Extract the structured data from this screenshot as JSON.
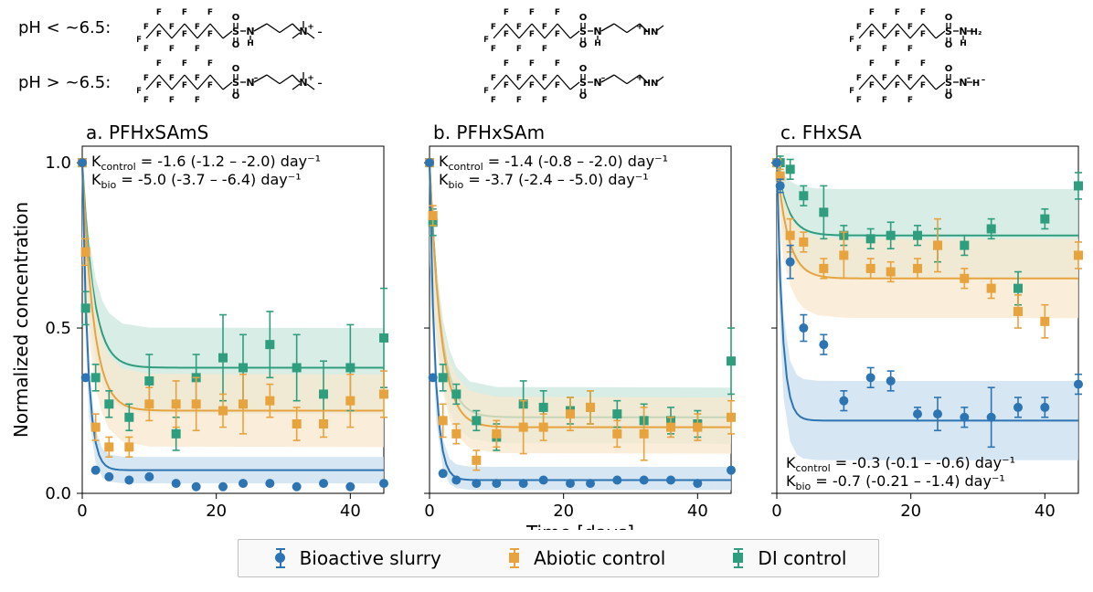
{
  "ph_labels": {
    "low": "pH < ~6.5:",
    "high": "pH > ~6.5:"
  },
  "molecule_struct_text": {
    "a_top": "F F F F F F  O\\/\\/\\/\\/S-N-/\\ N⁺-\nF F F F F F  O  H",
    "a_bot": "F F F F F F  O\\/\\/\\/\\/S-N⁻ /\\ N⁺-\nF F F F F F  O",
    "b_top": "F F F F F F  O\\/\\/\\/\\/S-N-/\\ ⁺HN\nF F F F F F  O  H",
    "b_bot": "F F F F F F  O\\/\\/\\/\\/S-N⁻ /\\ ⁺HN\nF F F F F F  O",
    "c_top": "F F F F F F  O\\/\\/\\/\\/S-NH₂\nF F F F F F  O",
    "c_bot": "F F F F F F  O\\/\\/\\/\\/S-NH⁻\nF F F F F F  O"
  },
  "axes": {
    "ylabel": "Normalized concentration",
    "xlabel": "Time [days]",
    "xlim": [
      0,
      45
    ],
    "ylim": [
      0.0,
      1.05
    ],
    "xticks": [
      0,
      20,
      40
    ],
    "yticks": [
      0.0,
      0.5,
      1.0
    ]
  },
  "colors": {
    "bio": "#2d74b3",
    "abiotic": "#e7a33d",
    "di": "#2f9e7e",
    "bio_fill": "#c8deee",
    "abiotic_fill": "#f8e7cc",
    "di_fill": "#cbe7dc",
    "frame": "#000000"
  },
  "legend": [
    {
      "label": "Bioactive slurry",
      "color": "bio",
      "marker": "circle"
    },
    {
      "label": "Abiotic control",
      "color": "abiotic",
      "marker": "square"
    },
    {
      "label": "DI control",
      "color": "di",
      "marker": "square"
    }
  ],
  "panels": [
    {
      "key": "a",
      "title": "a. PFHxSAmS",
      "k_control": "Kcontrol = -1.6 (-1.2 – -2.0) day⁻¹",
      "k_bio": "Kbio = -5.0 (-3.7 – -6.4) day⁻¹",
      "ktext_pos": "top",
      "series": {
        "bio": {
          "plateau": 0.07,
          "band": [
            0.03,
            0.11
          ]
        },
        "abiotic": {
          "plateau": 0.25,
          "band": [
            0.14,
            0.36
          ]
        },
        "di": {
          "plateau": 0.38,
          "band": [
            0.24,
            0.5
          ]
        }
      },
      "points": {
        "bio": [
          [
            0,
            1.0,
            0
          ],
          [
            0.5,
            0.35,
            0
          ],
          [
            2,
            0.07,
            0
          ],
          [
            4,
            0.05,
            0
          ],
          [
            7,
            0.04,
            0
          ],
          [
            10,
            0.05,
            0
          ],
          [
            14,
            0.03,
            0
          ],
          [
            17,
            0.02,
            0
          ],
          [
            21,
            0.02,
            0
          ],
          [
            24,
            0.03,
            0
          ],
          [
            28,
            0.03,
            0
          ],
          [
            32,
            0.02,
            0
          ],
          [
            36,
            0.03,
            0
          ],
          [
            40,
            0.02,
            0
          ],
          [
            45,
            0.03,
            0
          ]
        ],
        "abiotic": [
          [
            0,
            1.0,
            0
          ],
          [
            0.5,
            0.73,
            0.04
          ],
          [
            2,
            0.2,
            0.04
          ],
          [
            4,
            0.14,
            0.03
          ],
          [
            7,
            0.14,
            0.03
          ],
          [
            10,
            0.27,
            0.05
          ],
          [
            14,
            0.27,
            0.07
          ],
          [
            17,
            0.27,
            0.08
          ],
          [
            21,
            0.25,
            0.05
          ],
          [
            24,
            0.27,
            0.09
          ],
          [
            28,
            0.28,
            0.05
          ],
          [
            32,
            0.21,
            0.05
          ],
          [
            36,
            0.21,
            0.04
          ],
          [
            40,
            0.28,
            0.08
          ],
          [
            45,
            0.3,
            0.07
          ]
        ],
        "di": [
          [
            0,
            1.0,
            0
          ],
          [
            0.5,
            0.56,
            0.05
          ],
          [
            2,
            0.35,
            0.04
          ],
          [
            4,
            0.27,
            0.04
          ],
          [
            7,
            0.23,
            0.04
          ],
          [
            10,
            0.34,
            0.08
          ],
          [
            14,
            0.18,
            0.05
          ],
          [
            17,
            0.35,
            0.07
          ],
          [
            21,
            0.41,
            0.13
          ],
          [
            24,
            0.38,
            0.1
          ],
          [
            28,
            0.45,
            0.1
          ],
          [
            32,
            0.38,
            0.1
          ],
          [
            36,
            0.3,
            0.1
          ],
          [
            40,
            0.38,
            0.13
          ],
          [
            45,
            0.47,
            0.15
          ]
        ]
      }
    },
    {
      "key": "b",
      "title": "b. PFHxSAm",
      "k_control": "Kcontrol = -1.4 (-0.8 – -2.0) day⁻¹",
      "k_bio": "Kbio = -3.7 (-2.4 – -5.0) day⁻¹",
      "ktext_pos": "top",
      "series": {
        "bio": {
          "plateau": 0.04,
          "band": [
            0.01,
            0.08
          ]
        },
        "abiotic": {
          "plateau": 0.2,
          "band": [
            0.12,
            0.29
          ]
        },
        "di": {
          "plateau": 0.23,
          "band": [
            0.15,
            0.32
          ]
        }
      },
      "points": {
        "bio": [
          [
            0,
            1.0,
            0
          ],
          [
            0.5,
            0.35,
            0
          ],
          [
            2,
            0.06,
            0
          ],
          [
            4,
            0.04,
            0
          ],
          [
            7,
            0.03,
            0
          ],
          [
            10,
            0.03,
            0
          ],
          [
            14,
            0.03,
            0
          ],
          [
            17,
            0.04,
            0
          ],
          [
            21,
            0.03,
            0
          ],
          [
            24,
            0.03,
            0
          ],
          [
            28,
            0.04,
            0
          ],
          [
            32,
            0.04,
            0
          ],
          [
            36,
            0.04,
            0
          ],
          [
            40,
            0.03,
            0
          ],
          [
            45,
            0.07,
            0
          ]
        ],
        "abiotic": [
          [
            0,
            1.0,
            0
          ],
          [
            0.5,
            0.84,
            0.03
          ],
          [
            2,
            0.22,
            0.05
          ],
          [
            4,
            0.18,
            0.03
          ],
          [
            7,
            0.1,
            0.03
          ],
          [
            10,
            0.18,
            0.04
          ],
          [
            14,
            0.2,
            0.08
          ],
          [
            17,
            0.2,
            0.04
          ],
          [
            21,
            0.24,
            0.05
          ],
          [
            24,
            0.26,
            0.05
          ],
          [
            28,
            0.18,
            0.04
          ],
          [
            32,
            0.18,
            0.08
          ],
          [
            36,
            0.2,
            0.03
          ],
          [
            40,
            0.2,
            0.04
          ],
          [
            45,
            0.23,
            0.05
          ]
        ],
        "di": [
          [
            0,
            1.0,
            0
          ],
          [
            0.5,
            0.82,
            0.04
          ],
          [
            2,
            0.35,
            0.04
          ],
          [
            4,
            0.3,
            0.03
          ],
          [
            7,
            0.22,
            0.03
          ],
          [
            10,
            0.17,
            0.04
          ],
          [
            14,
            0.27,
            0.07
          ],
          [
            17,
            0.26,
            0.05
          ],
          [
            21,
            0.25,
            0.04
          ],
          [
            24,
            0.26,
            0.05
          ],
          [
            28,
            0.24,
            0.04
          ],
          [
            32,
            0.22,
            0.05
          ],
          [
            36,
            0.22,
            0.04
          ],
          [
            40,
            0.21,
            0.04
          ],
          [
            45,
            0.4,
            0.1
          ]
        ]
      }
    },
    {
      "key": "c",
      "title": "c. FHxSA",
      "k_control": "Kcontrol = -0.3 (-0.1 – -0.6) day⁻¹",
      "k_bio": "Kbio = -0.7 (-0.21 – -1.4) day⁻¹",
      "ktext_pos": "bottom",
      "series": {
        "bio": {
          "plateau": 0.22,
          "band": [
            0.1,
            0.34
          ]
        },
        "abiotic": {
          "plateau": 0.65,
          "band": [
            0.53,
            0.77
          ]
        },
        "di": {
          "plateau": 0.78,
          "band": [
            0.65,
            0.92
          ]
        }
      },
      "points": {
        "bio": [
          [
            0,
            1.0,
            0
          ],
          [
            0.5,
            0.93,
            0.02
          ],
          [
            2,
            0.7,
            0.05
          ],
          [
            4,
            0.5,
            0.04
          ],
          [
            7,
            0.45,
            0.03
          ],
          [
            10,
            0.28,
            0.03
          ],
          [
            14,
            0.35,
            0.03
          ],
          [
            17,
            0.34,
            0.03
          ],
          [
            21,
            0.24,
            0.02
          ],
          [
            24,
            0.24,
            0.05
          ],
          [
            28,
            0.23,
            0.03
          ],
          [
            32,
            0.23,
            0.09
          ],
          [
            36,
            0.26,
            0.03
          ],
          [
            40,
            0.26,
            0.03
          ],
          [
            45,
            0.33,
            0.03
          ]
        ],
        "abiotic": [
          [
            0,
            1.0,
            0
          ],
          [
            0.5,
            0.96,
            0.02
          ],
          [
            2,
            0.78,
            0.05
          ],
          [
            4,
            0.76,
            0.03
          ],
          [
            7,
            0.68,
            0.03
          ],
          [
            10,
            0.72,
            0.07
          ],
          [
            14,
            0.68,
            0.03
          ],
          [
            17,
            0.67,
            0.03
          ],
          [
            21,
            0.68,
            0.03
          ],
          [
            24,
            0.75,
            0.08
          ],
          [
            28,
            0.65,
            0.03
          ],
          [
            32,
            0.62,
            0.03
          ],
          [
            36,
            0.55,
            0.05
          ],
          [
            40,
            0.52,
            0.05
          ],
          [
            45,
            0.72,
            0.04
          ]
        ],
        "di": [
          [
            0,
            1.0,
            0
          ],
          [
            0.5,
            1.0,
            0.02
          ],
          [
            2,
            0.98,
            0.03
          ],
          [
            4,
            0.9,
            0.03
          ],
          [
            7,
            0.85,
            0.08
          ],
          [
            10,
            0.78,
            0.03
          ],
          [
            14,
            0.77,
            0.03
          ],
          [
            17,
            0.78,
            0.04
          ],
          [
            21,
            0.78,
            0.03
          ],
          [
            24,
            0.75,
            0.05
          ],
          [
            28,
            0.75,
            0.03
          ],
          [
            32,
            0.8,
            0.03
          ],
          [
            36,
            0.62,
            0.05
          ],
          [
            40,
            0.83,
            0.03
          ],
          [
            45,
            0.93,
            0.04
          ]
        ]
      }
    }
  ]
}
